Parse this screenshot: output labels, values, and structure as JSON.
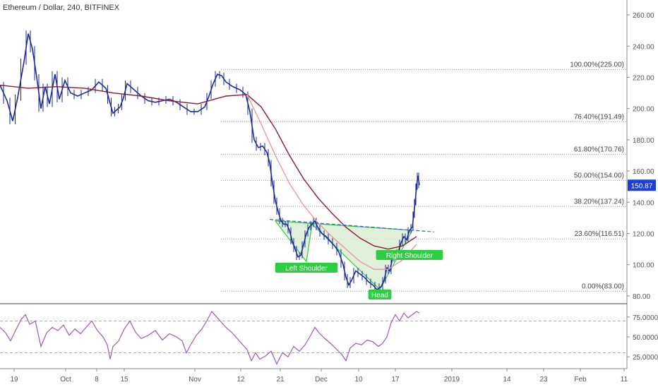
{
  "header": {
    "symbol_title": "Ethereum / Dollar, 240, BITFINEX"
  },
  "chart_data": [
    {
      "type": "candlestick",
      "title": "Ethereum / Dollar, 240, BITFINEX",
      "y_axis": {
        "ticks": [
          "260.00",
          "240.00",
          "220.00",
          "200.00",
          "180.00",
          "160.00",
          "140.00",
          "120.00",
          "100.00",
          "80.00"
        ],
        "range": [
          75,
          265
        ]
      },
      "x_axis": {
        "ticks": [
          "19",
          "Oct",
          "8",
          "15",
          "Nov",
          "12",
          "21",
          "Dec",
          "10",
          "17",
          "19",
          "2019",
          "14",
          "23",
          "Feb",
          "11"
        ]
      },
      "last_price": {
        "value": 150.87,
        "label": "150.87",
        "color": "#1e3fd6"
      },
      "price_path": [
        [
          0,
          215
        ],
        [
          10,
          205
        ],
        [
          18,
          192
        ],
        [
          25,
          207
        ],
        [
          34,
          230
        ],
        [
          40,
          248
        ],
        [
          46,
          238
        ],
        [
          52,
          220
        ],
        [
          58,
          200
        ],
        [
          64,
          214
        ],
        [
          70,
          203
        ],
        [
          78,
          222
        ],
        [
          84,
          206
        ],
        [
          92,
          218
        ],
        [
          100,
          210
        ],
        [
          110,
          208
        ],
        [
          120,
          210
        ],
        [
          130,
          212
        ],
        [
          140,
          217
        ],
        [
          150,
          213
        ],
        [
          155,
          205
        ],
        [
          160,
          197
        ],
        [
          165,
          199
        ],
        [
          170,
          201
        ],
        [
          175,
          207
        ],
        [
          180,
          216
        ],
        [
          190,
          212
        ],
        [
          200,
          208
        ],
        [
          210,
          205
        ],
        [
          220,
          204
        ],
        [
          230,
          205
        ],
        [
          240,
          206
        ],
        [
          250,
          204
        ],
        [
          260,
          201
        ],
        [
          270,
          198
        ],
        [
          280,
          198
        ],
        [
          290,
          201
        ],
        [
          296,
          208
        ],
        [
          302,
          216
        ],
        [
          308,
          222
        ],
        [
          314,
          221
        ],
        [
          320,
          217
        ],
        [
          330,
          214
        ],
        [
          340,
          212
        ],
        [
          348,
          209
        ],
        [
          354,
          198
        ],
        [
          360,
          180
        ],
        [
          366,
          175
        ],
        [
          372,
          176
        ],
        [
          378,
          172
        ],
        [
          382,
          165
        ],
        [
          386,
          152
        ],
        [
          390,
          141
        ],
        [
          394,
          134
        ],
        [
          398,
          128
        ],
        [
          402,
          126
        ],
        [
          406,
          126
        ],
        [
          410,
          122
        ],
        [
          414,
          115
        ],
        [
          418,
          110
        ],
        [
          422,
          105
        ],
        [
          426,
          106
        ],
        [
          430,
          113
        ],
        [
          434,
          120
        ],
        [
          438,
          124
        ],
        [
          442,
          126
        ],
        [
          446,
          128
        ],
        [
          450,
          124
        ],
        [
          456,
          120
        ],
        [
          462,
          118
        ],
        [
          468,
          115
        ],
        [
          474,
          112
        ],
        [
          480,
          108
        ],
        [
          486,
          100
        ],
        [
          490,
          92
        ],
        [
          494,
          87
        ],
        [
          498,
          90
        ],
        [
          504,
          96
        ],
        [
          510,
          94
        ],
        [
          516,
          92
        ],
        [
          522,
          89
        ],
        [
          528,
          87
        ],
        [
          534,
          84
        ],
        [
          540,
          86
        ],
        [
          544,
          90
        ],
        [
          548,
          98
        ],
        [
          552,
          96
        ],
        [
          556,
          104
        ],
        [
          560,
          106
        ],
        [
          564,
          108
        ],
        [
          568,
          114
        ],
        [
          572,
          118
        ],
        [
          576,
          116
        ],
        [
          580,
          122
        ],
        [
          584,
          124
        ],
        [
          586,
          132
        ],
        [
          588,
          140
        ],
        [
          590,
          150
        ],
        [
          592,
          157
        ],
        [
          594,
          151
        ]
      ],
      "moving_averages": [
        {
          "name": "",
          "color": "#8b1a2e",
          "path": [
            [
              0,
              215
            ],
            [
              40,
              213
            ],
            [
              80,
              214
            ],
            [
              120,
              213
            ],
            [
              160,
              210
            ],
            [
              200,
              208
            ],
            [
              240,
              205
            ],
            [
              280,
              203
            ],
            [
              320,
              208
            ],
            [
              350,
              209
            ],
            [
              370,
              201
            ],
            [
              390,
              187
            ],
            [
              410,
              170
            ],
            [
              430,
              155
            ],
            [
              450,
              143
            ],
            [
              470,
              133
            ],
            [
              490,
              124
            ],
            [
              510,
              117
            ],
            [
              530,
              112
            ],
            [
              550,
              110
            ],
            [
              570,
              112
            ],
            [
              590,
              118
            ]
          ]
        },
        {
          "name": "",
          "color": "#e89a9a",
          "path": [
            [
              350,
              209
            ],
            [
              370,
              190
            ],
            [
              390,
              170
            ],
            [
              410,
              152
            ],
            [
              430,
              138
            ],
            [
              450,
              127
            ],
            [
              470,
              118
            ],
            [
              490,
              110
            ],
            [
              510,
              102
            ],
            [
              530,
              97
            ],
            [
              550,
              97
            ],
            [
              570,
              103
            ],
            [
              590,
              113
            ]
          ]
        }
      ],
      "fibonacci": [
        {
          "label": "100.00%(225.00)",
          "level": 225.0
        },
        {
          "label": "76.40%(191.49)",
          "level": 191.49
        },
        {
          "label": "61.80%(170.76)",
          "level": 170.76
        },
        {
          "label": "50.00%(154.00)",
          "level": 154.0
        },
        {
          "label": "38.20%(137.24)",
          "level": 137.24
        },
        {
          "label": "23.60%(116.51)",
          "level": 116.51
        },
        {
          "label": "0.00%(83.00)",
          "level": 83.0
        }
      ],
      "annotations": [
        {
          "label": "Left Shoulder",
          "color": "#2ecc40"
        },
        {
          "label": "Head",
          "color": "#2ecc40"
        },
        {
          "label": "Right Shoulder",
          "color": "#2ecc40"
        }
      ],
      "pattern": {
        "fill": "#d9ecd2",
        "stroke": "#2ecc40",
        "points": [
          [
            390,
            128
          ],
          [
            434,
            102
          ],
          [
            442,
            126
          ],
          [
            538,
            84
          ],
          [
            584,
            122
          ]
        ]
      },
      "neckline": {
        "color": "#3a5bd9",
        "from": [
          382,
          129
        ],
        "to": [
          615,
          121
        ]
      },
      "colors": {
        "candles": "#1a2a9a",
        "grid": "#cccccc",
        "axis_text": "#555555"
      }
    },
    {
      "type": "line",
      "title": "",
      "y_axis": {
        "ticks": [
          "75.0000",
          "50.0000",
          "25.0000"
        ],
        "range": [
          10,
          90
        ]
      },
      "reference_levels": [
        70,
        30
      ],
      "series": [
        {
          "name": "",
          "color": "#9b59b6",
          "path": [
            [
              0,
              62
            ],
            [
              8,
              55
            ],
            [
              15,
              45
            ],
            [
              22,
              58
            ],
            [
              30,
              72
            ],
            [
              36,
              78
            ],
            [
              42,
              66
            ],
            [
              50,
              70
            ],
            [
              58,
              38
            ],
            [
              66,
              55
            ],
            [
              74,
              62
            ],
            [
              82,
              58
            ],
            [
              90,
              65
            ],
            [
              98,
              52
            ],
            [
              106,
              60
            ],
            [
              114,
              54
            ],
            [
              122,
              62
            ],
            [
              130,
              70
            ],
            [
              138,
              58
            ],
            [
              146,
              50
            ],
            [
              152,
              40
            ],
            [
              156,
              22
            ],
            [
              160,
              38
            ],
            [
              168,
              45
            ],
            [
              176,
              60
            ],
            [
              184,
              70
            ],
            [
              192,
              56
            ],
            [
              200,
              48
            ],
            [
              210,
              52
            ],
            [
              220,
              58
            ],
            [
              230,
              46
            ],
            [
              240,
              54
            ],
            [
              250,
              50
            ],
            [
              258,
              45
            ],
            [
              264,
              30
            ],
            [
              270,
              40
            ],
            [
              278,
              52
            ],
            [
              286,
              60
            ],
            [
              294,
              72
            ],
            [
              300,
              82
            ],
            [
              306,
              76
            ],
            [
              312,
              70
            ],
            [
              320,
              62
            ],
            [
              328,
              56
            ],
            [
              336,
              48
            ],
            [
              344,
              40
            ],
            [
              350,
              34
            ],
            [
              356,
              20
            ],
            [
              362,
              30
            ],
            [
              368,
              22
            ],
            [
              376,
              26
            ],
            [
              384,
              32
            ],
            [
              392,
              16
            ],
            [
              400,
              30
            ],
            [
              408,
              25
            ],
            [
              416,
              38
            ],
            [
              424,
              32
            ],
            [
              432,
              40
            ],
            [
              440,
              52
            ],
            [
              446,
              62
            ],
            [
              452,
              55
            ],
            [
              460,
              48
            ],
            [
              468,
              42
            ],
            [
              476,
              35
            ],
            [
              484,
              28
            ],
            [
              490,
              20
            ],
            [
              496,
              36
            ],
            [
              504,
              42
            ],
            [
              512,
              40
            ],
            [
              520,
              46
            ],
            [
              528,
              44
            ],
            [
              536,
              38
            ],
            [
              542,
              42
            ],
            [
              548,
              50
            ],
            [
              554,
              68
            ],
            [
              560,
              78
            ],
            [
              566,
              70
            ],
            [
              572,
              80
            ],
            [
              578,
              74
            ],
            [
              584,
              78
            ],
            [
              590,
              82
            ],
            [
              594,
              80
            ]
          ]
        }
      ]
    }
  ]
}
